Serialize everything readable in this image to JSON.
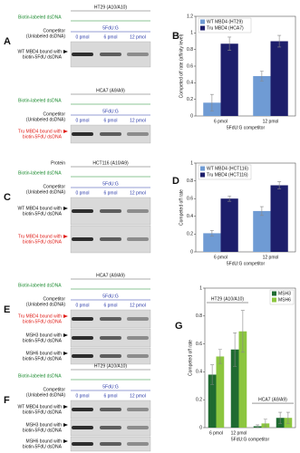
{
  "chart_data": [
    {
      "type": "bar",
      "panel": "B",
      "ylabel": "Competed off rate (affinity level)",
      "xlabel": "5FdU:G competitor",
      "categories": [
        "6 pmol",
        "12 pmol"
      ],
      "series": [
        {
          "name": "WT MBD4 (HT29)",
          "color": "#6f9bd4",
          "values": [
            0.16,
            0.48
          ],
          "errors": [
            0.1,
            0.06
          ]
        },
        {
          "name": "Tru MBD4 (HCA7)",
          "color": "#1d1e6b",
          "values": [
            0.87,
            0.9
          ],
          "errors": [
            0.08,
            0.07
          ]
        }
      ],
      "ylim": [
        0,
        1.2
      ],
      "yticks": [
        0,
        0.2,
        0.4,
        0.6,
        0.8,
        1,
        1.2
      ],
      "legend": "top"
    },
    {
      "type": "bar",
      "panel": "D",
      "ylabel": "Competed off rate",
      "xlabel": "5FdU:G competitor",
      "categories": [
        "6 pmol",
        "12 pmol"
      ],
      "series": [
        {
          "name": "WT MBD4 (HCT116)",
          "color": "#6f9bd4",
          "values": [
            0.21,
            0.46
          ],
          "errors": [
            0.03,
            0.05
          ]
        },
        {
          "name": "Tru MBD4 (HCT116)",
          "color": "#1d1e6b",
          "values": [
            0.6,
            0.75
          ],
          "errors": [
            0.03,
            0.04
          ]
        }
      ],
      "ylim": [
        0,
        1
      ],
      "yticks": [
        0,
        0.2,
        0.4,
        0.6,
        0.8,
        1
      ],
      "legend": "top"
    },
    {
      "type": "bar",
      "panel": "G",
      "ylabel": "Competed off rate",
      "xlabel": "5FdU:G competitor",
      "categories": [
        "6 pmol",
        "12 pmol",
        null,
        null
      ],
      "group_labels": [
        "HT29 (A10/A10)",
        "HCA7 (A9/A9)"
      ],
      "series": [
        {
          "name": "MSH3",
          "color": "#1f6b31",
          "values": [
            0.38,
            0.56,
            0.01,
            0.07
          ],
          "errors": [
            0.07,
            0.12,
            0.01,
            0.04
          ]
        },
        {
          "name": "MSH6",
          "color": "#8cc63f",
          "values": [
            0.51,
            0.69,
            0.03,
            0.07
          ],
          "errors": [
            0.05,
            0.15,
            0.03,
            0.04
          ]
        }
      ],
      "ylim": [
        0,
        1
      ],
      "yticks": [
        0,
        0.2,
        0.4,
        0.6,
        0.8,
        1
      ],
      "legend": "top-right"
    }
  ],
  "blots": [
    {
      "panel": "A",
      "sections": [
        {
          "header": "HT29 (A10/A10)",
          "biotin": "Biotin-labeled dsDNA",
          "competitor_label": [
            "Competitor",
            "(Unlabeled dsDNA)"
          ],
          "competitor": "5FdU:G",
          "lanes": [
            "0 pmol",
            "6 pmol",
            "12 pmol"
          ],
          "bands": [
            {
              "label": [
                "WT MBD4 bound with",
                "biotin-5FdU dsDNA"
              ],
              "color": "#111111"
            }
          ]
        },
        {
          "header": "HCA7 (A9/A9)",
          "biotin": "Biotin-labeled dsDNA",
          "competitor_label": [
            "Competitor",
            "(Unlabeled dsDNA)"
          ],
          "competitor": "5FdU:G",
          "lanes": [
            "0 pmol",
            "6 pmol",
            "12 pmol"
          ],
          "bands": [
            {
              "label": [
                "Tru MBD4 bound with",
                "biotin-5FdU dsDNA"
              ],
              "color": "#e0201b"
            }
          ]
        }
      ]
    },
    {
      "panel": "C",
      "sections": [
        {
          "protein": "Protein",
          "header": "HCT116 (A10/A9)",
          "biotin": "Biotin-labeled dsDNA",
          "competitor_label": [
            "Competitor",
            "(Unlabeled dsDNA)"
          ],
          "competitor": "5FdU:G",
          "lanes": [
            "0 pmol",
            "6 pmol",
            "12 pmol"
          ],
          "bands": [
            {
              "label": [
                "WT MBD4 bound with",
                "biotin-5FdU dsDNA"
              ],
              "color": "#111111"
            },
            {
              "label": [
                "Tru MBD4 bound with",
                "biotin-5FdU dsDNA"
              ],
              "color": "#e0201b"
            }
          ]
        }
      ]
    },
    {
      "panel": "E",
      "sections": [
        {
          "header": "HCA7 (A9/A9)",
          "biotin": "Biotin-labeled dsDNA",
          "competitor_label": [
            "Competitor",
            "(Unlabeled dsDNA)"
          ],
          "competitor": "5FdU:G",
          "lanes": [
            "0 pmol",
            "6 pmol",
            "12 pmol"
          ],
          "bands": [
            {
              "label": [
                "Tru MBD4 bound with",
                "biotin-5FdU dsDNA"
              ],
              "color": "#e0201b"
            },
            {
              "label": [
                "MSH3 bound with",
                "biotin-5FdU dsDNA"
              ],
              "color": "#111111"
            },
            {
              "label": [
                "MSH6 bound with",
                "biotin-5FdU dsDNA"
              ],
              "color": "#111111"
            }
          ]
        }
      ]
    },
    {
      "panel": "F",
      "sections": [
        {
          "header": "HT29 (A10/A10)",
          "biotin": "Biotin-labeled dsDNA",
          "competitor_label": [
            "Competitor",
            "(Unlabeled dsDNA)"
          ],
          "competitor": "5FdU:G",
          "lanes": [
            "0 pmol",
            "6 pmol",
            "12 pmol"
          ],
          "bands": [
            {
              "label": [
                "WT MBD4 bound with",
                "biotin-5FdU dsDNA"
              ],
              "color": "#111111"
            },
            {
              "label": [
                "MSH3 bound with",
                "biotin-5FdU dsDNA"
              ],
              "color": "#111111"
            },
            {
              "label": [
                "MSH6 bound with",
                "biotin-5FdU dsDNA"
              ],
              "color": "#111111"
            }
          ]
        }
      ]
    }
  ]
}
